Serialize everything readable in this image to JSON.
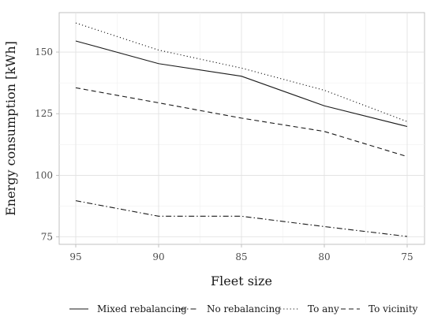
{
  "chart_data": {
    "type": "line",
    "title": "",
    "xlabel": "Fleet size",
    "ylabel": "Energy consumption [kWh]",
    "x": [
      95,
      90,
      85,
      80,
      75
    ],
    "x_order": "descending",
    "ylim": [
      72,
      166
    ],
    "yticks": [
      75,
      100,
      125,
      150
    ],
    "grid": true,
    "legend_position": "bottom",
    "series": [
      {
        "name": "Mixed rebalancing",
        "line_style": "solid",
        "color": "#1a1a1a",
        "values": [
          154.5,
          145.3,
          140.2,
          128.2,
          119.8
        ]
      },
      {
        "name": "No rebalancing",
        "line_style": "dashdot",
        "color": "#1a1a1a",
        "values": [
          89.7,
          83.4,
          83.4,
          79.2,
          75.2
        ]
      },
      {
        "name": "To any",
        "line_style": "dotted",
        "color": "#1a1a1a",
        "values": [
          161.8,
          150.8,
          143.5,
          134.5,
          121.8
        ]
      },
      {
        "name": "To vicinity",
        "line_style": "dashed",
        "color": "#1a1a1a",
        "values": [
          135.5,
          129.4,
          123.2,
          117.8,
          107.6
        ]
      }
    ]
  }
}
